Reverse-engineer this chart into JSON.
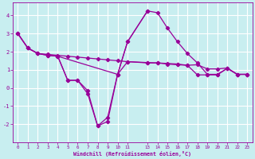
{
  "xlabel": "Windchill (Refroidissement éolien,°C)",
  "bg_color": "#c8eef0",
  "line_color": "#990099",
  "grid_color": "#ffffff",
  "line1_x": [
    0,
    1,
    2,
    3,
    4,
    5,
    6,
    7,
    8,
    9,
    10,
    11,
    13,
    14,
    15,
    16,
    17,
    18,
    19,
    20,
    21,
    22,
    23
  ],
  "line1_y": [
    3.0,
    2.2,
    1.9,
    1.85,
    1.8,
    1.75,
    1.7,
    1.65,
    1.6,
    1.55,
    1.5,
    1.45,
    1.4,
    1.38,
    1.35,
    1.32,
    1.25,
    1.28,
    1.05,
    1.05,
    1.1,
    0.75,
    0.75
  ],
  "line2_x": [
    0,
    1,
    2,
    3,
    4,
    5,
    6,
    7,
    8,
    9,
    10,
    11,
    13,
    14,
    15,
    16,
    17,
    18,
    19,
    20,
    21,
    22,
    23
  ],
  "line2_y": [
    3.0,
    2.2,
    1.9,
    1.8,
    1.75,
    0.42,
    0.42,
    -0.15,
    -2.1,
    -1.85,
    0.75,
    2.55,
    4.25,
    4.15,
    3.3,
    2.55,
    1.9,
    1.38,
    0.75,
    0.75,
    1.08,
    0.75,
    0.75
  ],
  "line3_x": [
    0,
    1,
    2,
    3,
    4,
    10,
    11,
    13,
    14,
    15,
    16,
    17,
    18,
    19,
    20,
    21,
    22,
    23
  ],
  "line3_y": [
    3.0,
    2.2,
    1.9,
    1.8,
    1.75,
    0.75,
    1.45,
    1.38,
    1.38,
    1.32,
    1.28,
    1.25,
    0.72,
    0.72,
    0.72,
    1.08,
    0.75,
    0.75
  ],
  "line4_x": [
    4,
    5,
    6,
    7,
    8,
    9,
    10,
    11,
    13
  ],
  "line4_y": [
    1.75,
    0.42,
    0.42,
    -0.32,
    -2.1,
    -1.62,
    0.75,
    2.55,
    4.25
  ],
  "xlim": [
    -0.5,
    23.5
  ],
  "ylim": [
    -2.5,
    4.7
  ],
  "xticks": [
    0,
    1,
    2,
    3,
    4,
    5,
    6,
    7,
    8,
    9,
    10,
    11,
    13,
    14,
    15,
    16,
    17,
    18,
    19,
    20,
    21,
    22,
    23
  ],
  "yticks": [
    -2,
    -1,
    0,
    1,
    2,
    3,
    4
  ]
}
